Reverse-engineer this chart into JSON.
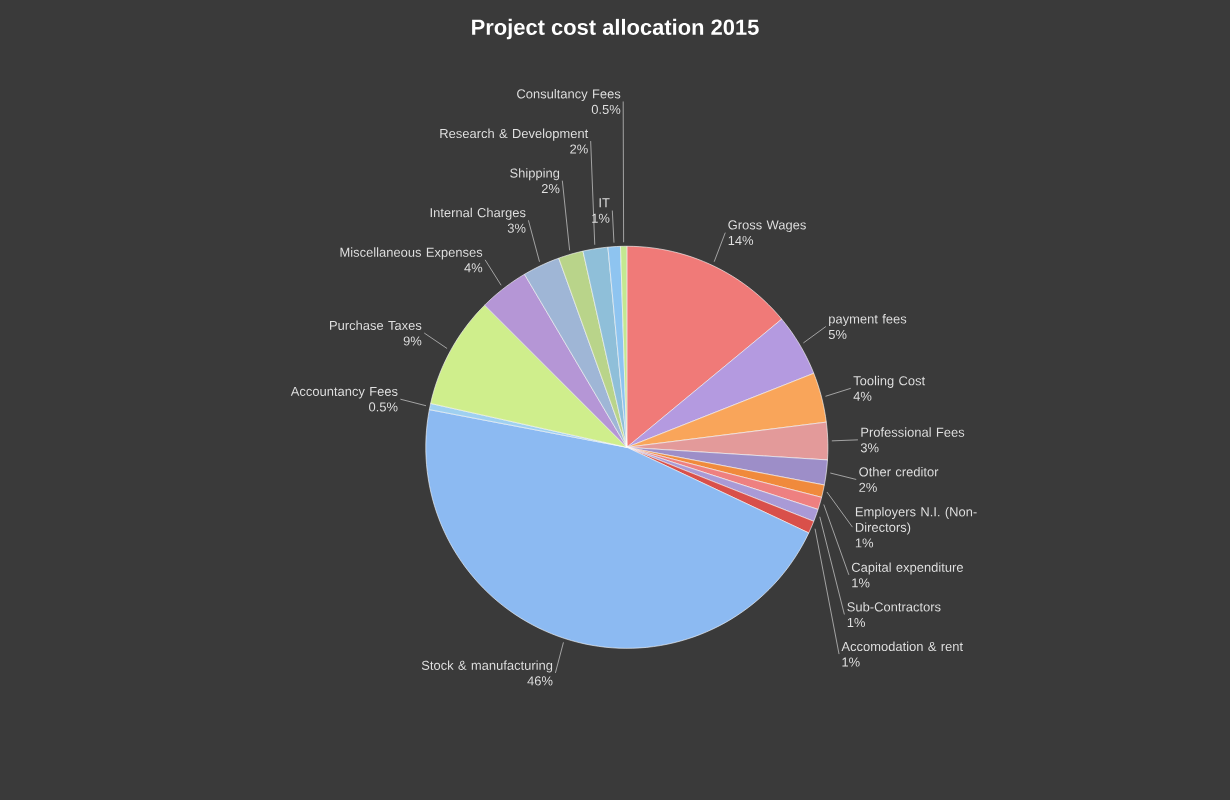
{
  "chart_data": {
    "type": "pie",
    "title": "Project cost allocation 2015",
    "categories": [
      "Gross Wages",
      "payment fees",
      "Tooling Cost",
      "Professional Fees",
      "Other creditor",
      "Employers N.I. (Non-Directors)",
      "Capital expenditure",
      "Sub-Contractors",
      "Accomodation & rent",
      "Stock & manufacturing",
      "Accountancy Fees",
      "Purchase Taxes",
      "Miscellaneous Expenses",
      "Internal Charges",
      "Shipping",
      "Research & Development",
      "IT",
      "Consultancy Fees"
    ],
    "values": [
      14,
      5,
      4,
      3,
      2,
      1,
      1,
      1,
      1,
      46,
      0.5,
      9,
      4,
      3,
      2,
      2,
      1,
      0.5
    ],
    "value_labels": [
      "14%",
      "5%",
      "4%",
      "3%",
      "2%",
      "1%",
      "1%",
      "1%",
      "1%",
      "46%",
      "0.5%",
      "9%",
      "4%",
      "3%",
      "2%",
      "2%",
      "1%",
      "0.5%"
    ],
    "colors": [
      "#f07a78",
      "#b49ae0",
      "#f9a55a",
      "#e39a9a",
      "#9d8ec8",
      "#f08a3c",
      "#ee8080",
      "#a99ad6",
      "#d9504a",
      "#8cbaf2",
      "#9fd0f0",
      "#cfee8c",
      "#b596d6",
      "#9fb6d6",
      "#b9d48a",
      "#8fbfd9",
      "#8ec4f0",
      "#c4e890"
    ]
  }
}
